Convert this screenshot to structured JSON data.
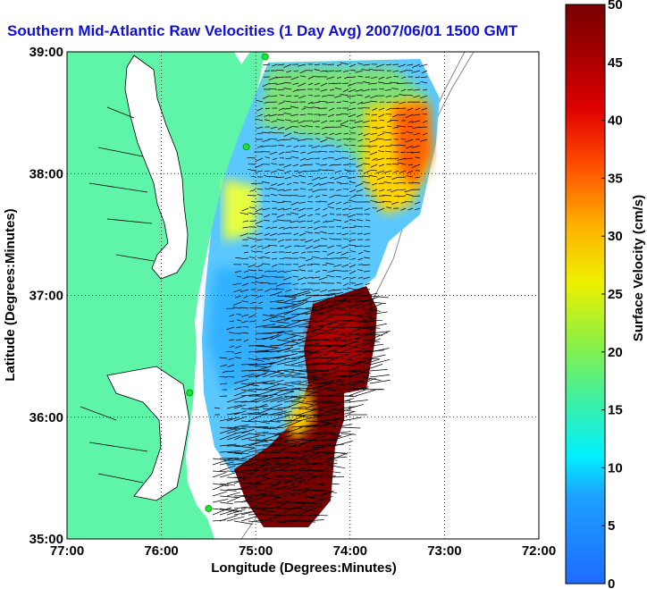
{
  "title": "Southern Mid-Atlantic Raw Velocities (1 Day Avg) 2007/06/01 1500 GMT",
  "x_axis": {
    "label": "Longitude (Degrees:Minutes)",
    "range": [
      -77,
      -72
    ],
    "ticks": [
      {
        "value": -77,
        "label": "77:00"
      },
      {
        "value": -76,
        "label": "76:00"
      },
      {
        "value": -75,
        "label": "75:00"
      },
      {
        "value": -74,
        "label": "74:00"
      },
      {
        "value": -73,
        "label": "73:00"
      },
      {
        "value": -72,
        "label": "72:00"
      }
    ]
  },
  "y_axis": {
    "label": "Latitude (Degrees:Minutes)",
    "range": [
      35,
      39
    ],
    "ticks": [
      {
        "value": 39,
        "label": "39:00"
      },
      {
        "value": 38,
        "label": "38:00"
      },
      {
        "value": 37,
        "label": "37:00"
      },
      {
        "value": 36,
        "label": "36:00"
      },
      {
        "value": 35,
        "label": "35:00"
      }
    ]
  },
  "colorbar": {
    "label": "Surface Velocity (cm/s)",
    "range": [
      0,
      50
    ],
    "ticks": [
      {
        "value": 0,
        "label": "0"
      },
      {
        "value": 5,
        "label": "5"
      },
      {
        "value": 10,
        "label": "10"
      },
      {
        "value": 15,
        "label": "15"
      },
      {
        "value": 20,
        "label": "20"
      },
      {
        "value": 25,
        "label": "25"
      },
      {
        "value": 30,
        "label": "30"
      },
      {
        "value": 35,
        "label": "35"
      },
      {
        "value": 40,
        "label": "40"
      },
      {
        "value": 45,
        "label": "45"
      },
      {
        "value": 50,
        "label": "50"
      }
    ]
  },
  "colors": {
    "land": "#5ef5a8",
    "title": "#1010d8",
    "station": "#22dd44"
  },
  "stations": [
    {
      "lon": -74.9,
      "lat": 38.96
    },
    {
      "lon": -75.1,
      "lat": 38.22
    },
    {
      "lon": -75.7,
      "lat": 36.2
    },
    {
      "lon": -75.5,
      "lat": 35.25
    }
  ],
  "velocity_regions": [
    {
      "name": "north-offshore-band",
      "speed_cm_s": 38
    },
    {
      "name": "central-shelf",
      "speed_cm_s": 10
    },
    {
      "name": "hatteras-gulf-stream",
      "speed_cm_s": 50
    }
  ]
}
